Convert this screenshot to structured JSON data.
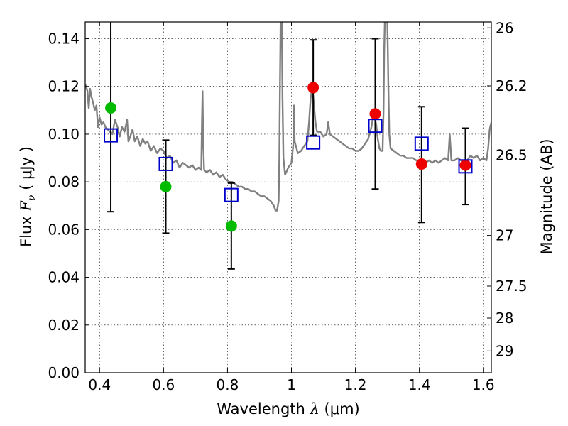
{
  "chart_data": {
    "type": "scatter",
    "xlabel_prefix": "Wavelength",
    "xlabel_symbol": "λ",
    "xlabel_unit": "(μm)",
    "ylabel_prefix": "Flux",
    "ylabel_symbol": "F",
    "ylabel_sub": "ν",
    "ylabel_unit": "( μJy )",
    "y2label": "Magnitude (AB)",
    "xlim": [
      0.355,
      1.625
    ],
    "ylim": [
      0.0,
      0.147
    ],
    "grid": true,
    "x_ticks": [
      0.4,
      0.6,
      0.8,
      1.0,
      1.2,
      1.4,
      1.6
    ],
    "x_tick_labels": [
      "0.4",
      "0.6",
      "0.8",
      "1",
      "1.2",
      "1.4",
      "1.6"
    ],
    "y_ticks": [
      0.0,
      0.02,
      0.04,
      0.06,
      0.08,
      0.1,
      0.12,
      0.14
    ],
    "y_tick_labels": [
      "0.00",
      "0.02",
      "0.04",
      "0.06",
      "0.08",
      "0.10",
      "0.12",
      "0.14"
    ],
    "y2_ticks": [
      {
        "label": "26",
        "mag": 26.0
      },
      {
        "label": "26.2",
        "mag": 26.2
      },
      {
        "label": "26.5",
        "mag": 26.5
      },
      {
        "label": "27",
        "mag": 27.0
      },
      {
        "label": "27.5",
        "mag": 27.5
      },
      {
        "label": "28",
        "mag": 28.0
      },
      {
        "label": "29",
        "mag": 29.0
      }
    ],
    "series": [
      {
        "kind": "spectrum",
        "color": "#808080",
        "points": [
          [
            0.355,
            0.121
          ],
          [
            0.362,
            0.118
          ],
          [
            0.366,
            0.111
          ],
          [
            0.37,
            0.119
          ],
          [
            0.374,
            0.116
          ],
          [
            0.38,
            0.113
          ],
          [
            0.385,
            0.11
          ],
          [
            0.39,
            0.112
          ],
          [
            0.395,
            0.103
          ],
          [
            0.4,
            0.107
          ],
          [
            0.406,
            0.104
          ],
          [
            0.412,
            0.105
          ],
          [
            0.418,
            0.103
          ],
          [
            0.425,
            0.102
          ],
          [
            0.432,
            0.101
          ],
          [
            0.44,
            0.1
          ],
          [
            0.448,
            0.106
          ],
          [
            0.456,
            0.103
          ],
          [
            0.463,
            0.099
          ],
          [
            0.47,
            0.103
          ],
          [
            0.478,
            0.101
          ],
          [
            0.486,
            0.106
          ],
          [
            0.49,
            0.097
          ],
          [
            0.496,
            0.099
          ],
          [
            0.503,
            0.102
          ],
          [
            0.51,
            0.097
          ],
          [
            0.518,
            0.099
          ],
          [
            0.527,
            0.095
          ],
          [
            0.535,
            0.098
          ],
          [
            0.543,
            0.096
          ],
          [
            0.55,
            0.097
          ],
          [
            0.56,
            0.093
          ],
          [
            0.57,
            0.095
          ],
          [
            0.58,
            0.092
          ],
          [
            0.59,
            0.094
          ],
          [
            0.6,
            0.093
          ],
          [
            0.61,
            0.09
          ],
          [
            0.62,
            0.091
          ],
          [
            0.63,
            0.088
          ],
          [
            0.64,
            0.089
          ],
          [
            0.65,
            0.086
          ],
          [
            0.66,
            0.088
          ],
          [
            0.67,
            0.087
          ],
          [
            0.68,
            0.086
          ],
          [
            0.69,
            0.087
          ],
          [
            0.7,
            0.085
          ],
          [
            0.71,
            0.086
          ],
          [
            0.718,
            0.085
          ],
          [
            0.72,
            0.104
          ],
          [
            0.722,
            0.118
          ],
          [
            0.724,
            0.096
          ],
          [
            0.727,
            0.085
          ],
          [
            0.735,
            0.084
          ],
          [
            0.745,
            0.085
          ],
          [
            0.755,
            0.083
          ],
          [
            0.765,
            0.084
          ],
          [
            0.775,
            0.082
          ],
          [
            0.785,
            0.083
          ],
          [
            0.795,
            0.081
          ],
          [
            0.805,
            0.08
          ],
          [
            0.815,
            0.08
          ],
          [
            0.825,
            0.079
          ],
          [
            0.835,
            0.078
          ],
          [
            0.845,
            0.078
          ],
          [
            0.855,
            0.077
          ],
          [
            0.865,
            0.077
          ],
          [
            0.875,
            0.076
          ],
          [
            0.885,
            0.076
          ],
          [
            0.895,
            0.075
          ],
          [
            0.905,
            0.074
          ],
          [
            0.915,
            0.074
          ],
          [
            0.925,
            0.073
          ],
          [
            0.935,
            0.072
          ],
          [
            0.945,
            0.07
          ],
          [
            0.95,
            0.068
          ],
          [
            0.955,
            0.068
          ],
          [
            0.96,
            0.072
          ],
          [
            0.962,
            0.09
          ],
          [
            0.964,
            0.12
          ],
          [
            0.966,
            0.147
          ],
          [
            0.97,
            0.147
          ],
          [
            0.972,
            0.115
          ],
          [
            0.975,
            0.09
          ],
          [
            0.98,
            0.083
          ],
          [
            0.99,
            0.086
          ],
          [
            1.0,
            0.088
          ],
          [
            1.006,
            0.096
          ],
          [
            1.008,
            0.112
          ],
          [
            1.01,
            0.097
          ],
          [
            1.02,
            0.092
          ],
          [
            1.03,
            0.093
          ],
          [
            1.04,
            0.095
          ],
          [
            1.05,
            0.097
          ],
          [
            1.055,
            0.105
          ],
          [
            1.06,
            0.115
          ],
          [
            1.065,
            0.12
          ],
          [
            1.07,
            0.113
          ],
          [
            1.075,
            0.105
          ],
          [
            1.08,
            0.101
          ],
          [
            1.09,
            0.101
          ],
          [
            1.1,
            0.099
          ],
          [
            1.11,
            0.1
          ],
          [
            1.115,
            0.105
          ],
          [
            1.12,
            0.1
          ],
          [
            1.13,
            0.099
          ],
          [
            1.14,
            0.098
          ],
          [
            1.15,
            0.097
          ],
          [
            1.16,
            0.096
          ],
          [
            1.17,
            0.095
          ],
          [
            1.18,
            0.094
          ],
          [
            1.19,
            0.094
          ],
          [
            1.2,
            0.093
          ],
          [
            1.21,
            0.093
          ],
          [
            1.22,
            0.094
          ],
          [
            1.23,
            0.096
          ],
          [
            1.24,
            0.098
          ],
          [
            1.25,
            0.103
          ],
          [
            1.258,
            0.109
          ],
          [
            1.265,
            0.104
          ],
          [
            1.27,
            0.098
          ],
          [
            1.275,
            0.094
          ],
          [
            1.28,
            0.093
          ],
          [
            1.285,
            0.093
          ],
          [
            1.288,
            0.11
          ],
          [
            1.29,
            0.135
          ],
          [
            1.292,
            0.147
          ],
          [
            1.3,
            0.147
          ],
          [
            1.303,
            0.12
          ],
          [
            1.306,
            0.1
          ],
          [
            1.31,
            0.094
          ],
          [
            1.32,
            0.093
          ],
          [
            1.33,
            0.092
          ],
          [
            1.34,
            0.091
          ],
          [
            1.35,
            0.091
          ],
          [
            1.36,
            0.09
          ],
          [
            1.37,
            0.09
          ],
          [
            1.38,
            0.09
          ],
          [
            1.39,
            0.089
          ],
          [
            1.4,
            0.089
          ],
          [
            1.41,
            0.089
          ],
          [
            1.42,
            0.088
          ],
          [
            1.43,
            0.089
          ],
          [
            1.44,
            0.088
          ],
          [
            1.45,
            0.089
          ],
          [
            1.46,
            0.088
          ],
          [
            1.47,
            0.089
          ],
          [
            1.48,
            0.09
          ],
          [
            1.49,
            0.089
          ],
          [
            1.495,
            0.1
          ],
          [
            1.5,
            0.089
          ],
          [
            1.51,
            0.089
          ],
          [
            1.52,
            0.09
          ],
          [
            1.53,
            0.089
          ],
          [
            1.54,
            0.088
          ],
          [
            1.55,
            0.089
          ],
          [
            1.56,
            0.091
          ],
          [
            1.57,
            0.09
          ],
          [
            1.58,
            0.091
          ],
          [
            1.59,
            0.089
          ],
          [
            1.6,
            0.09
          ],
          [
            1.61,
            0.089
          ],
          [
            1.615,
            0.094
          ],
          [
            1.62,
            0.102
          ],
          [
            1.625,
            0.105
          ]
        ]
      },
      {
        "kind": "model-squares",
        "color": "#0000cc",
        "points": [
          {
            "x": 0.435,
            "y": 0.0995,
            "ylo": 0.0675,
            "yhi": 0.147
          },
          {
            "x": 0.607,
            "y": 0.0875,
            "ylo": 0.0585,
            "yhi": 0.0975
          },
          {
            "x": 0.812,
            "y": 0.0745,
            "ylo": 0.0435,
            "yhi": 0.0795
          },
          {
            "x": 1.068,
            "y": 0.0965,
            "ylo": 0.0995,
            "yhi": 0.1395
          },
          {
            "x": 1.262,
            "y": 0.1035,
            "ylo": 0.077,
            "yhi": 0.14
          },
          {
            "x": 1.407,
            "y": 0.096,
            "ylo": 0.063,
            "yhi": 0.1115
          },
          {
            "x": 1.544,
            "y": 0.0865,
            "ylo": 0.0705,
            "yhi": 0.1025
          }
        ]
      },
      {
        "kind": "observed-green",
        "color": "#00bb00",
        "points": [
          {
            "x": 0.435,
            "y": 0.111
          },
          {
            "x": 0.607,
            "y": 0.078
          },
          {
            "x": 0.812,
            "y": 0.0615
          }
        ]
      },
      {
        "kind": "observed-red",
        "color": "#ee0000",
        "points": [
          {
            "x": 1.068,
            "y": 0.1195
          },
          {
            "x": 1.262,
            "y": 0.1085
          },
          {
            "x": 1.407,
            "y": 0.0875
          },
          {
            "x": 1.544,
            "y": 0.087
          }
        ]
      }
    ]
  }
}
